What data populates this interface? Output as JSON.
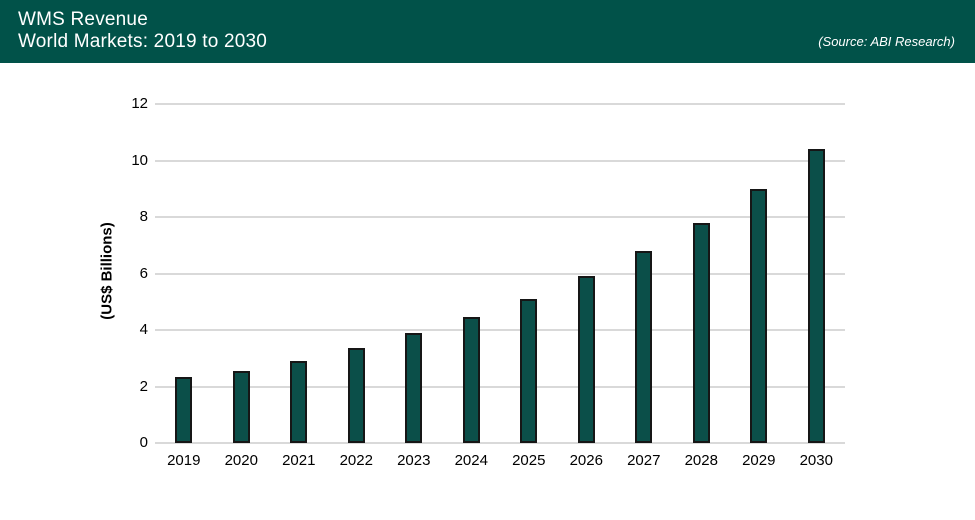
{
  "header": {
    "title_line1": "WMS Revenue",
    "title_line2": "World Markets: 2019 to 2030",
    "source": "(Source: ABI Research)",
    "background_color": "#015249",
    "text_color": "#FFFFFF"
  },
  "chart_data": {
    "type": "bar",
    "title": "WMS Revenue",
    "subtitle": "World Markets: 2019 to 2030",
    "categories": [
      "2019",
      "2020",
      "2021",
      "2022",
      "2023",
      "2024",
      "2025",
      "2026",
      "2027",
      "2028",
      "2029",
      "2030"
    ],
    "values": [
      2.35,
      2.55,
      2.9,
      3.35,
      3.9,
      4.45,
      5.1,
      5.9,
      6.8,
      7.8,
      9.0,
      10.4
    ],
    "xlabel": "",
    "ylabel": "(US$ Billions)",
    "ylim": [
      0,
      12
    ],
    "yticks": [
      0,
      2,
      4,
      6,
      8,
      10,
      12
    ],
    "grid": true,
    "legend": false,
    "bar_color": "#0B4F49",
    "bar_border_color": "#161616",
    "gridline_color": "#D9D9D9"
  }
}
